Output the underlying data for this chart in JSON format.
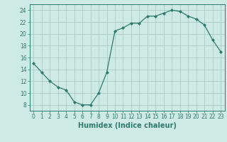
{
  "x": [
    0,
    1,
    2,
    3,
    4,
    5,
    6,
    7,
    8,
    9,
    10,
    11,
    12,
    13,
    14,
    15,
    16,
    17,
    18,
    19,
    20,
    21,
    22,
    23
  ],
  "y": [
    15,
    13.5,
    12,
    11,
    10.5,
    8.5,
    8,
    8,
    10,
    13.5,
    20.5,
    21,
    21.8,
    21.8,
    23,
    23,
    23.5,
    24,
    23.8,
    23,
    22.5,
    21.5,
    19,
    17
  ],
  "line_color": "#2d7a6e",
  "marker": "D",
  "marker_size": 2,
  "bg_color": "#ceeae4",
  "grid_color": "#aaccc6",
  "xlabel": "Humidex (Indice chaleur)",
  "xlabel_fontsize": 7,
  "ylabel_ticks": [
    8,
    10,
    12,
    14,
    16,
    18,
    20,
    22,
    24
  ],
  "xlim": [
    -0.5,
    23.5
  ],
  "ylim": [
    7,
    25
  ],
  "xtick_labels": [
    "0",
    "1",
    "2",
    "3",
    "4",
    "5",
    "6",
    "7",
    "8",
    "9",
    "10",
    "11",
    "12",
    "13",
    "14",
    "15",
    "16",
    "17",
    "18",
    "19",
    "20",
    "21",
    "22",
    "23"
  ],
  "tick_fontsize": 5.5
}
